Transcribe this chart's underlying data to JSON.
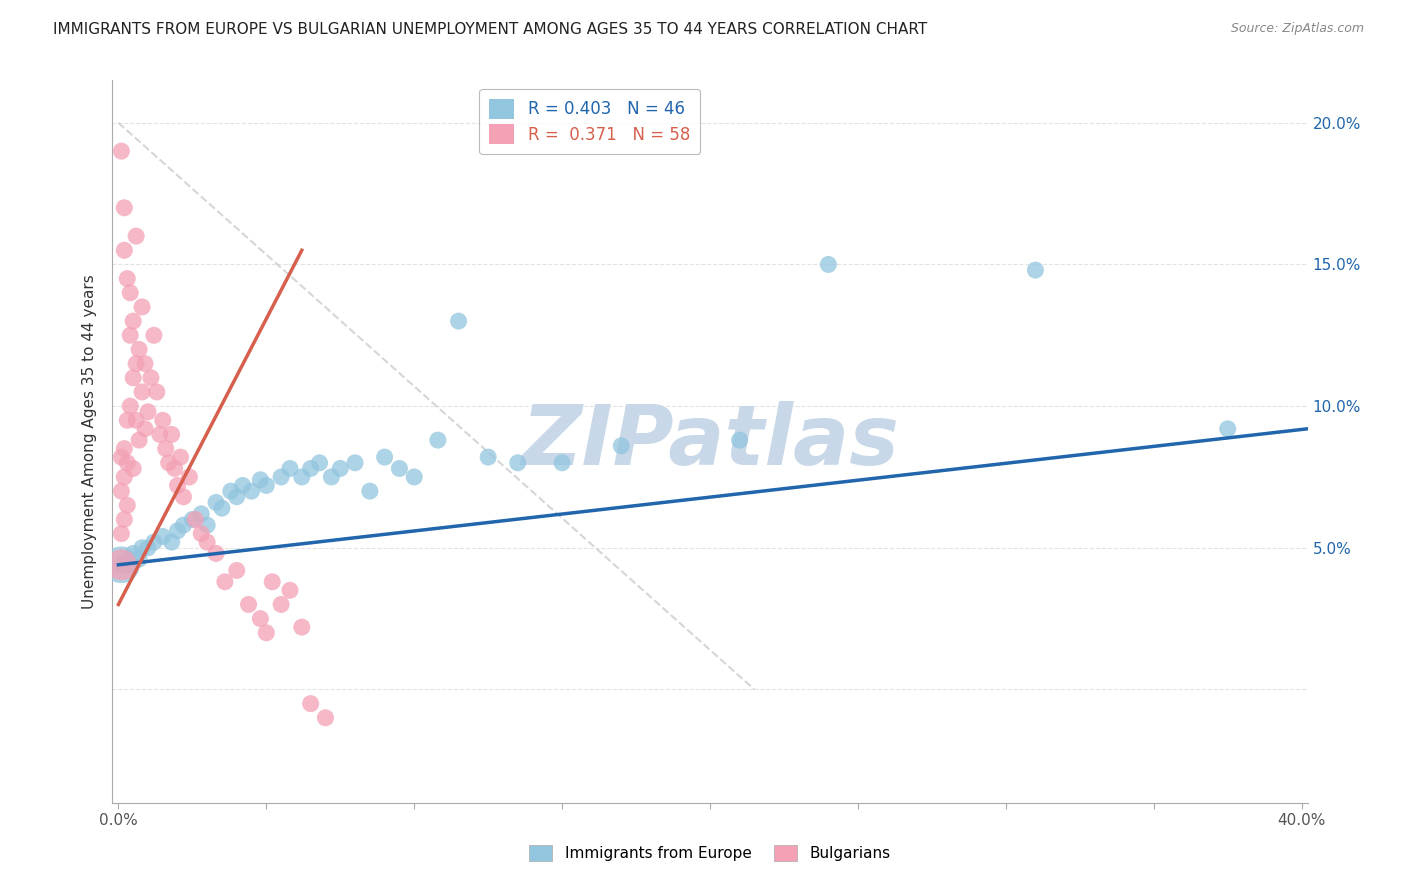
{
  "title": "IMMIGRANTS FROM EUROPE VS BULGARIAN UNEMPLOYMENT AMONG AGES 35 TO 44 YEARS CORRELATION CHART",
  "source": "Source: ZipAtlas.com",
  "ylabel": "Unemployment Among Ages 35 to 44 years",
  "xlim": [
    -0.002,
    0.402
  ],
  "ylim": [
    -0.04,
    0.215
  ],
  "xticks": [
    0.0,
    0.05,
    0.1,
    0.15,
    0.2,
    0.25,
    0.3,
    0.35,
    0.4
  ],
  "yticks": [
    0.0,
    0.05,
    0.1,
    0.15,
    0.2
  ],
  "xticklabels": [
    "0.0%",
    "",
    "",
    "",
    "",
    "",
    "",
    "",
    "40.0%"
  ],
  "yticklabels": [
    "",
    "",
    "",
    "",
    ""
  ],
  "right_yticklabels": [
    "",
    "5.0%",
    "10.0%",
    "15.0%",
    "20.0%"
  ],
  "blue_color": "#92c5de",
  "pink_color": "#f4a0b5",
  "blue_line_color": "#2166ac",
  "pink_line_color": "#d6604d",
  "ref_line_color": "#cccccc",
  "watermark_color": "#c8d8e8",
  "background_color": "#ffffff",
  "blue_scatter_x": [
    0.001,
    0.002,
    0.003,
    0.004,
    0.005,
    0.007,
    0.008,
    0.01,
    0.012,
    0.015,
    0.018,
    0.02,
    0.022,
    0.025,
    0.028,
    0.03,
    0.033,
    0.035,
    0.038,
    0.04,
    0.042,
    0.045,
    0.048,
    0.05,
    0.055,
    0.058,
    0.062,
    0.065,
    0.068,
    0.072,
    0.075,
    0.08,
    0.085,
    0.09,
    0.095,
    0.1,
    0.108,
    0.115,
    0.125,
    0.135,
    0.15,
    0.17,
    0.21,
    0.24,
    0.31,
    0.375
  ],
  "blue_scatter_y": [
    0.044,
    0.044,
    0.046,
    0.044,
    0.048,
    0.046,
    0.05,
    0.05,
    0.052,
    0.054,
    0.052,
    0.056,
    0.058,
    0.06,
    0.062,
    0.058,
    0.066,
    0.064,
    0.07,
    0.068,
    0.072,
    0.07,
    0.074,
    0.072,
    0.075,
    0.078,
    0.075,
    0.078,
    0.08,
    0.075,
    0.078,
    0.08,
    0.07,
    0.082,
    0.078,
    0.075,
    0.088,
    0.13,
    0.082,
    0.08,
    0.08,
    0.086,
    0.088,
    0.15,
    0.148,
    0.092
  ],
  "pink_scatter_x": [
    0.001,
    0.001,
    0.001,
    0.001,
    0.001,
    0.002,
    0.002,
    0.002,
    0.002,
    0.002,
    0.003,
    0.003,
    0.003,
    0.003,
    0.004,
    0.004,
    0.004,
    0.005,
    0.005,
    0.005,
    0.006,
    0.006,
    0.006,
    0.007,
    0.007,
    0.008,
    0.008,
    0.009,
    0.009,
    0.01,
    0.011,
    0.012,
    0.013,
    0.014,
    0.015,
    0.016,
    0.017,
    0.018,
    0.019,
    0.02,
    0.021,
    0.022,
    0.024,
    0.026,
    0.028,
    0.03,
    0.033,
    0.036,
    0.04,
    0.044,
    0.048,
    0.05,
    0.052,
    0.055,
    0.058,
    0.062,
    0.065,
    0.07
  ],
  "pink_scatter_y": [
    0.044,
    0.055,
    0.07,
    0.082,
    0.19,
    0.06,
    0.075,
    0.085,
    0.17,
    0.155,
    0.065,
    0.08,
    0.095,
    0.145,
    0.1,
    0.125,
    0.14,
    0.11,
    0.13,
    0.078,
    0.095,
    0.115,
    0.16,
    0.088,
    0.12,
    0.105,
    0.135,
    0.092,
    0.115,
    0.098,
    0.11,
    0.125,
    0.105,
    0.09,
    0.095,
    0.085,
    0.08,
    0.09,
    0.078,
    0.072,
    0.082,
    0.068,
    0.075,
    0.06,
    0.055,
    0.052,
    0.048,
    0.038,
    0.042,
    0.03,
    0.025,
    0.02,
    0.038,
    0.03,
    0.035,
    0.022,
    -0.005,
    -0.01
  ],
  "pink_large_x": [
    0.001
  ],
  "pink_large_y": [
    0.044
  ],
  "blue_large_x": [
    0.001
  ],
  "blue_large_y": [
    0.044
  ],
  "blue_trend_x": [
    0.0,
    0.402
  ],
  "blue_trend_y": [
    0.044,
    0.092
  ],
  "pink_trend_x": [
    0.0,
    0.062
  ],
  "pink_trend_y": [
    0.03,
    0.155
  ],
  "ref_line_x": [
    0.0,
    0.215
  ],
  "ref_line_y": [
    0.2,
    0.0
  ],
  "legend_blue_label": "R = 0.403   N = 46",
  "legend_pink_label": "R =  0.371   N = 58",
  "bottom_legend_labels": [
    "Immigrants from Europe",
    "Bulgarians"
  ]
}
